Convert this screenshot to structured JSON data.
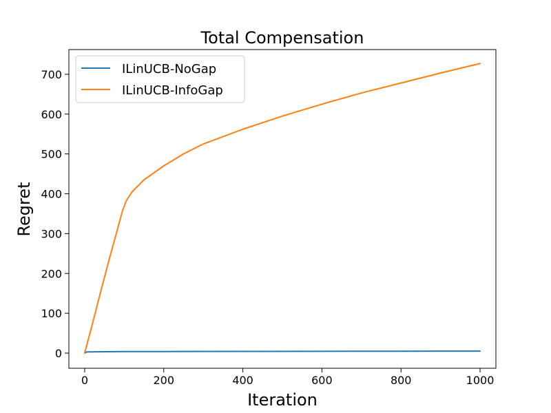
{
  "chart_data": {
    "type": "line",
    "title": "Total Compensation",
    "xlabel": "Iteration",
    "ylabel": "Regret",
    "xlim": [
      -40,
      1040
    ],
    "ylim": [
      -38,
      762
    ],
    "xticks": [
      0,
      200,
      400,
      600,
      800,
      1000
    ],
    "yticks": [
      0,
      100,
      200,
      300,
      400,
      500,
      600,
      700
    ],
    "legend_position": "top-left",
    "grid": false,
    "series": [
      {
        "name": "ILinUCB-NoGap",
        "color": "#1f77b4",
        "x": [
          0,
          5,
          50,
          100,
          200,
          400,
          600,
          800,
          1000
        ],
        "y": [
          0,
          3,
          3.5,
          3.8,
          4,
          4.3,
          4.6,
          4.8,
          5
        ]
      },
      {
        "name": "ILinUCB-InfoGap",
        "color": "#ff7f0e",
        "x": [
          0,
          20,
          40,
          60,
          80,
          95,
          105,
          120,
          150,
          200,
          250,
          300,
          400,
          500,
          600,
          700,
          800,
          900,
          1000
        ],
        "y": [
          0,
          75,
          152,
          228,
          300,
          355,
          382,
          405,
          435,
          470,
          500,
          525,
          562,
          595,
          625,
          653,
          678,
          703,
          727
        ]
      }
    ]
  }
}
